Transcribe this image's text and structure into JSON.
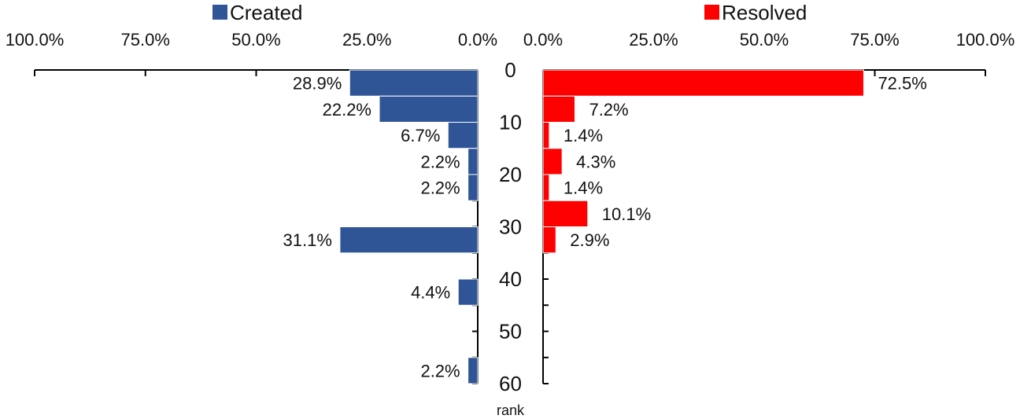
{
  "chart_data": {
    "type": "bar",
    "orientation": "horizontal",
    "layout": "back-to-back",
    "y_axis": {
      "label": "rank",
      "range": [
        0,
        60
      ],
      "ticks": [
        0,
        10,
        20,
        30,
        40,
        50,
        60
      ],
      "tick_labels": [
        "0",
        "10",
        "20",
        "30",
        "40",
        "50",
        "60"
      ],
      "bin_size": 5
    },
    "x_axis": {
      "range": [
        0,
        100
      ],
      "ticks": [
        0,
        25,
        50,
        75,
        100
      ],
      "tick_labels": [
        "0.0%",
        "25.0%",
        "50.0%",
        "75.0%",
        "100.0%"
      ],
      "left_tick_labels": [
        "100.0%",
        "75.0%",
        "50.0%",
        "25.0%",
        "0.0%"
      ],
      "right_tick_labels": [
        "0.0%",
        "25.0%",
        "50.0%",
        "75.0%",
        "100.0%"
      ]
    },
    "series": [
      {
        "name": "Created",
        "side": "left",
        "color": "#2F5597",
        "bars": [
          {
            "rank_start": 0,
            "rank_end": 5,
            "value": 28.9,
            "label": "28.9%"
          },
          {
            "rank_start": 5,
            "rank_end": 10,
            "value": 22.2,
            "label": "22.2%"
          },
          {
            "rank_start": 10,
            "rank_end": 15,
            "value": 6.7,
            "label": "6.7%"
          },
          {
            "rank_start": 15,
            "rank_end": 20,
            "value": 2.2,
            "label": "2.2%"
          },
          {
            "rank_start": 20,
            "rank_end": 25,
            "value": 2.2,
            "label": "2.2%"
          },
          {
            "rank_start": 30,
            "rank_end": 35,
            "value": 31.1,
            "label": "31.1%"
          },
          {
            "rank_start": 40,
            "rank_end": 45,
            "value": 4.4,
            "label": "4.4%"
          },
          {
            "rank_start": 55,
            "rank_end": 60,
            "value": 2.2,
            "label": "2.2%"
          }
        ]
      },
      {
        "name": "Resolved",
        "side": "right",
        "color": "#FF0000",
        "bars": [
          {
            "rank_start": 0,
            "rank_end": 5,
            "value": 72.5,
            "label": "72.5%"
          },
          {
            "rank_start": 5,
            "rank_end": 10,
            "value": 7.2,
            "label": "7.2%"
          },
          {
            "rank_start": 10,
            "rank_end": 15,
            "value": 1.4,
            "label": "1.4%"
          },
          {
            "rank_start": 15,
            "rank_end": 20,
            "value": 4.3,
            "label": "4.3%"
          },
          {
            "rank_start": 20,
            "rank_end": 25,
            "value": 1.4,
            "label": "1.4%"
          },
          {
            "rank_start": 25,
            "rank_end": 30,
            "value": 10.1,
            "label": "10.1%"
          },
          {
            "rank_start": 30,
            "rank_end": 35,
            "value": 2.9,
            "label": "2.9%"
          }
        ]
      }
    ],
    "legend": {
      "placement": "top",
      "entries": [
        "Created",
        "Resolved"
      ]
    },
    "grid": false
  }
}
